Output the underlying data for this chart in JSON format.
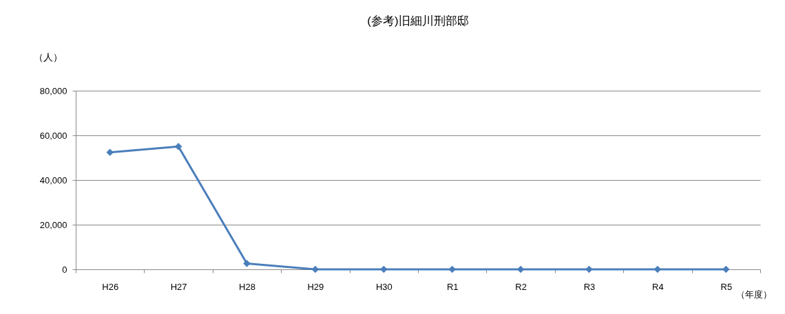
{
  "chart_data": {
    "type": "line",
    "title": "(参考)旧細川刑部邸",
    "ylabel": "（人）",
    "xlabel": "（年度）",
    "categories": [
      "H26",
      "H27",
      "H28",
      "H29",
      "H30",
      "R1",
      "R2",
      "R3",
      "R4",
      "R5"
    ],
    "series": [
      {
        "color": "#4a7ebb",
        "values": [
          52400,
          55000,
          2600,
          0,
          0,
          0,
          0,
          0,
          0,
          0
        ]
      }
    ],
    "ylim": [
      0,
      80000
    ],
    "yticks": [
      0,
      {
        "value": 20000,
        "label": "20,000"
      },
      {
        "value": 40000,
        "label": "40,000"
      },
      {
        "value": 60000,
        "label": "60,000"
      },
      {
        "value": 80000,
        "label": "80,000"
      }
    ],
    "grid": "y",
    "marker": "diamond",
    "line_style": "solid"
  }
}
